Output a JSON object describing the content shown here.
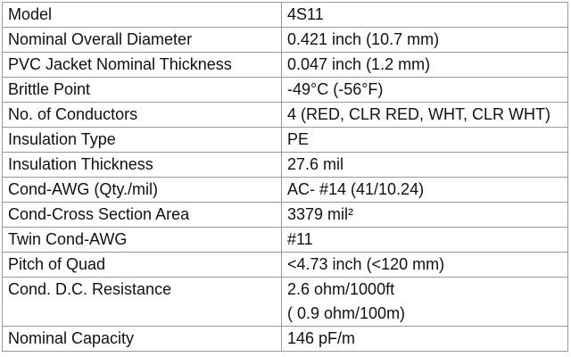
{
  "rows": [
    {
      "label": "Model",
      "value": [
        "4S11"
      ]
    },
    {
      "label": "Nominal Overall Diameter",
      "value": [
        "0.421 inch (10.7 mm)"
      ]
    },
    {
      "label": "PVC Jacket Nominal Thickness",
      "value": [
        "0.047 inch (1.2 mm)"
      ]
    },
    {
      "label": "Brittle Point",
      "value": [
        "-49°C (-56°F)"
      ]
    },
    {
      "label": "No. of Conductors",
      "value": [
        "4 (RED, CLR RED, WHT, CLR WHT)"
      ]
    },
    {
      "label": "Insulation Type",
      "value": [
        "PE"
      ]
    },
    {
      "label": "Insulation Thickness",
      "value": [
        "27.6 mil"
      ]
    },
    {
      "label": "Cond-AWG (Qty./mil)",
      "value": [
        "AC- #14 (41/10.24)"
      ]
    },
    {
      "label": "Cond-Cross Section Area",
      "value": [
        "3379 mil²"
      ]
    },
    {
      "label": "Twin Cond-AWG",
      "value": [
        "#11"
      ]
    },
    {
      "label": "Pitch of Quad",
      "value": [
        "<4.73 inch (<120 mm)"
      ]
    },
    {
      "label": "Cond. D.C. Resistance",
      "value": [
        "2.6 ohm/1000ft",
        "( 0.9 ohm/100m)"
      ]
    },
    {
      "label": "Nominal Capacity",
      "value": [
        "146 pF/m"
      ]
    }
  ]
}
